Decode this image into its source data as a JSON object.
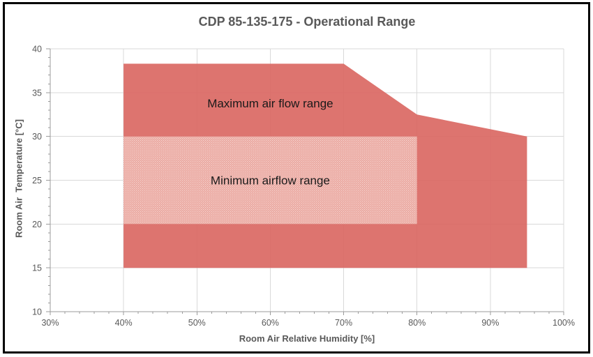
{
  "chart_data": {
    "type": "area",
    "title": "CDP 85-135-175 - Operational Range",
    "xlabel": "Room Air Relative Humidity [%]",
    "ylabel": "Room Air  Temperature [°C]",
    "xlim": [
      30,
      100
    ],
    "ylim": [
      10,
      40
    ],
    "x_ticks": [
      30,
      40,
      50,
      60,
      70,
      80,
      90,
      100
    ],
    "x_tick_labels": [
      "30%",
      "40%",
      "50%",
      "60%",
      "70%",
      "80%",
      "90%",
      "100%"
    ],
    "y_ticks": [
      10,
      15,
      20,
      25,
      30,
      35,
      40
    ],
    "y_tick_labels": [
      "10",
      "15",
      "20",
      "25",
      "30",
      "35",
      "40"
    ],
    "x_minor_step": 2,
    "y_minor_step": 1,
    "grid": true,
    "legend": "none",
    "series": [
      {
        "name": "Maximum air flow range",
        "shape": "polygon",
        "points": [
          [
            40,
            15
          ],
          [
            40,
            38.3
          ],
          [
            70,
            38.3
          ],
          [
            80,
            32.5
          ],
          [
            95,
            30
          ],
          [
            95,
            15
          ]
        ],
        "fill": "solid",
        "color": "#d9655f",
        "opacity": 0.9
      },
      {
        "name": "Minimum airflow range",
        "shape": "polygon",
        "points": [
          [
            40,
            20
          ],
          [
            40,
            30
          ],
          [
            80,
            30
          ],
          [
            80,
            20
          ]
        ],
        "fill": "stipple",
        "color": "#ebaaa3",
        "opacity": 0.95
      }
    ],
    "annotations": [
      {
        "text": "Maximum air flow range",
        "x": 60,
        "y": 33.8
      },
      {
        "text": "Minimum airflow range",
        "x": 60,
        "y": 25
      }
    ],
    "colors": {
      "title": "#595959",
      "axis_label": "#595959",
      "tick_label": "#595959",
      "grid": "#d9d9d9",
      "axis": "#9b9b9b",
      "annotation": "#1a1a1a",
      "max_area": "#d9655f",
      "stipple_base": "#ebaaa3",
      "stipple_dot": "#f9ddd8",
      "frame": "#000000"
    }
  }
}
